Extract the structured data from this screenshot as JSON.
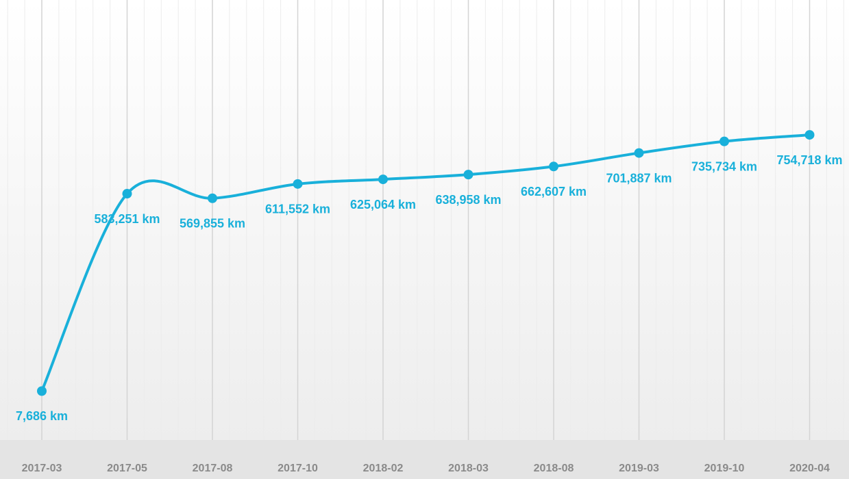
{
  "chart_data": {
    "type": "line",
    "categories": [
      "2017-03",
      "2017-05",
      "2017-08",
      "2017-10",
      "2018-02",
      "2018-03",
      "2018-08",
      "2019-03",
      "2019-10",
      "2020-04"
    ],
    "series": [
      {
        "color": "#19b0da",
        "values": [
          7686,
          583251,
          569855,
          611552,
          625064,
          638958,
          662607,
          701887,
          735734,
          754718
        ],
        "value_labels": [
          "7,686 km",
          "583,251 km",
          "569,855 km",
          "611,552 km",
          "625,064 km",
          "638,958 km",
          "662,607 km",
          "701,887 km",
          "735,734 km",
          "754,718 km"
        ]
      }
    ],
    "ylim": [
      -135000,
      1148000
    ]
  }
}
